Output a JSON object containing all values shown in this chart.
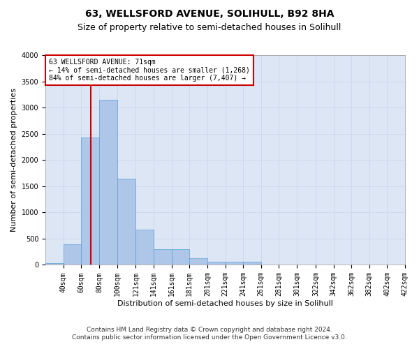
{
  "title": "63, WELLSFORD AVENUE, SOLIHULL, B92 8HA",
  "subtitle": "Size of property relative to semi-detached houses in Solihull",
  "xlabel": "Distribution of semi-detached houses by size in Solihull",
  "ylabel": "Number of semi-detached properties",
  "footer_line1": "Contains HM Land Registry data © Crown copyright and database right 2024.",
  "footer_line2": "Contains public sector information licensed under the Open Government Licence v3.0.",
  "annotation_line1": "63 WELLSFORD AVENUE: 71sqm",
  "annotation_line2": "← 14% of semi-detached houses are smaller (1,268)",
  "annotation_line3": "84% of semi-detached houses are larger (7,407) →",
  "property_size": 71,
  "bin_edges": [
    20,
    40,
    60,
    80,
    100,
    121,
    141,
    161,
    181,
    201,
    221,
    241,
    261,
    281,
    301,
    322,
    342,
    362,
    382,
    402,
    422
  ],
  "bar_heights": [
    30,
    390,
    2430,
    3150,
    1640,
    670,
    295,
    295,
    120,
    65,
    55,
    55,
    0,
    0,
    0,
    0,
    0,
    0,
    0,
    0
  ],
  "bar_color": "#aec6e8",
  "bar_edge_color": "#5a9fd4",
  "vline_color": "#cc0000",
  "vline_x": 71,
  "annotation_box_color": "#cc0000",
  "ylim": [
    0,
    4000
  ],
  "yticks": [
    0,
    500,
    1000,
    1500,
    2000,
    2500,
    3000,
    3500,
    4000
  ],
  "grid_color": "#c8d4e8",
  "bg_color": "#dce6f5",
  "title_fontsize": 10,
  "subtitle_fontsize": 9,
  "ylabel_fontsize": 8,
  "xlabel_fontsize": 8,
  "footer_fontsize": 6.5,
  "annotation_fontsize": 7,
  "tick_fontsize": 7
}
